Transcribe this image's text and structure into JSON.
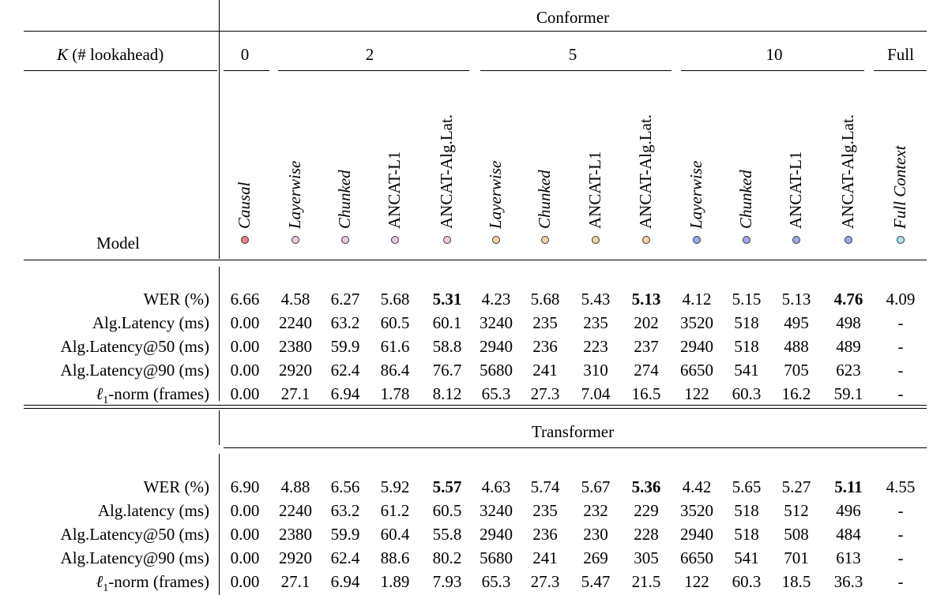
{
  "conformer_title": "Conformer",
  "transformer_title": "Transformer",
  "k_label": "K",
  "k_label_rest": "(# lookahead)",
  "model_label": "Model",
  "k_groups": [
    "0",
    "2",
    "5",
    "10",
    "Full"
  ],
  "models": [
    {
      "name": "Causal",
      "italic": true,
      "color": "#f08080"
    },
    {
      "name": "Layerwise",
      "italic": true,
      "color": "#f7c6e3"
    },
    {
      "name": "Chunked",
      "italic": true,
      "color": "#f7c6e3"
    },
    {
      "name": "ANCAT-L1",
      "italic": false,
      "color": "#f7c6e3"
    },
    {
      "name": "ANCAT-Alg.Lat.",
      "italic": false,
      "color": "#f7c6e3"
    },
    {
      "name": "Layerwise",
      "italic": true,
      "color": "#fbd2a8"
    },
    {
      "name": "Chunked",
      "italic": true,
      "color": "#fbd2a8"
    },
    {
      "name": "ANCAT-L1",
      "italic": false,
      "color": "#fbd2a8"
    },
    {
      "name": "ANCAT-Alg.Lat.",
      "italic": false,
      "color": "#fbd2a8"
    },
    {
      "name": "Layerwise",
      "italic": true,
      "color": "#9ea8f3"
    },
    {
      "name": "Chunked",
      "italic": true,
      "color": "#9ea8f3"
    },
    {
      "name": "ANCAT-L1",
      "italic": false,
      "color": "#9ea8f3"
    },
    {
      "name": "ANCAT-Alg.Lat.",
      "italic": false,
      "color": "#9ea8f3"
    },
    {
      "name": "Full Context",
      "italic": true,
      "color": "#a8e6f5"
    }
  ],
  "conformer_rows": [
    {
      "label": "WER (%)",
      "values": [
        "6.66",
        "4.58",
        "6.27",
        "5.68",
        "5.31",
        "4.23",
        "5.68",
        "5.43",
        "5.13",
        "4.12",
        "5.15",
        "5.13",
        "4.76",
        "4.09"
      ],
      "bold": [
        4,
        8,
        12
      ]
    },
    {
      "label": "Alg.Latency (ms)",
      "values": [
        "0.00",
        "2240",
        "63.2",
        "60.5",
        "60.1",
        "3240",
        "235",
        "235",
        "202",
        "3520",
        "518",
        "495",
        "498",
        "-"
      ],
      "bold": []
    },
    {
      "label": "Alg.Latency@50 (ms)",
      "values": [
        "0.00",
        "2380",
        "59.9",
        "61.6",
        "58.8",
        "2940",
        "236",
        "223",
        "237",
        "2940",
        "518",
        "488",
        "489",
        "-"
      ],
      "bold": []
    },
    {
      "label": "Alg.Latency@90 (ms)",
      "values": [
        "0.00",
        "2920",
        "62.4",
        "86.4",
        "76.7",
        "5680",
        "241",
        "310",
        "274",
        "6650",
        "541",
        "705",
        "623",
        "-"
      ],
      "bold": []
    },
    {
      "label": "-norm (frames)",
      "math": "ℓ",
      "sub": "1",
      "values": [
        "0.00",
        "27.1",
        "6.94",
        "1.78",
        "8.12",
        "65.3",
        "27.3",
        "7.04",
        "16.5",
        "122",
        "60.3",
        "16.2",
        "59.1",
        "-"
      ],
      "bold": []
    }
  ],
  "transformer_rows": [
    {
      "label": "WER (%)",
      "values": [
        "6.90",
        "4.88",
        "6.56",
        "5.92",
        "5.57",
        "4.63",
        "5.74",
        "5.67",
        "5.36",
        "4.42",
        "5.65",
        "5.27",
        "5.11",
        "4.55"
      ],
      "bold": [
        4,
        8,
        12
      ]
    },
    {
      "label": "Alg.latency (ms)",
      "values": [
        "0.00",
        "2240",
        "63.2",
        "61.2",
        "60.5",
        "3240",
        "235",
        "232",
        "229",
        "3520",
        "518",
        "512",
        "496",
        "-"
      ],
      "bold": []
    },
    {
      "label": "Alg.Latency@50 (ms)",
      "values": [
        "0.00",
        "2380",
        "59.9",
        "60.4",
        "55.8",
        "2940",
        "236",
        "230",
        "228",
        "2940",
        "518",
        "508",
        "484",
        "-"
      ],
      "bold": []
    },
    {
      "label": "Alg.Latency@90 (ms)",
      "values": [
        "0.00",
        "2920",
        "62.4",
        "88.6",
        "80.2",
        "5680",
        "241",
        "269",
        "305",
        "6650",
        "541",
        "701",
        "613",
        "-"
      ],
      "bold": []
    },
    {
      "label": "-norm (frames)",
      "math": "ℓ",
      "sub": "1",
      "values": [
        "0.00",
        "27.1",
        "6.94",
        "1.89",
        "7.93",
        "65.3",
        "27.3",
        "5.47",
        "21.5",
        "122",
        "60.3",
        "18.5",
        "36.3",
        "-"
      ],
      "bold": []
    }
  ]
}
